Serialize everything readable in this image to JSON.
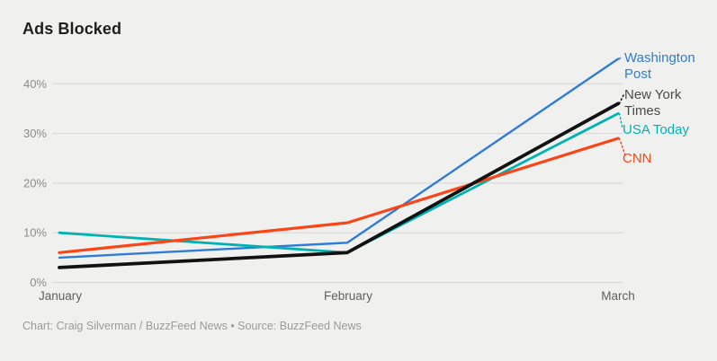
{
  "header": {
    "title": "Ads Blocked"
  },
  "chart_data": {
    "type": "line",
    "title": "Ads Blocked",
    "categories": [
      "January",
      "February",
      "March"
    ],
    "series": [
      {
        "name": "Washington Post",
        "label": "Washington\nPost",
        "color": "#2e7cd6",
        "values": [
          5,
          8,
          45
        ]
      },
      {
        "name": "New York Times",
        "label": "New York\nTimes",
        "color": "#121212",
        "label_color": "#4a4a4a",
        "values": [
          3,
          6,
          36
        ]
      },
      {
        "name": "USA Today",
        "label": "USA Today",
        "color": "#00b3b3",
        "values": [
          10,
          6,
          34
        ]
      },
      {
        "name": "CNN",
        "label": "CNN",
        "color": "#fa4516",
        "values": [
          6,
          12,
          29
        ]
      }
    ],
    "ytick_values": [
      0,
      10,
      20,
      30,
      40
    ],
    "ytick_labels": [
      "0%",
      "10%",
      "20%",
      "30%",
      "40%"
    ],
    "ylim": [
      0,
      45
    ],
    "xlabel": "",
    "ylabel": "",
    "grid": "horizontal",
    "legend_position": "right-labels",
    "colors": {
      "background": "#f0f0ee",
      "gridline": "#d5d5d4",
      "tick_label": "#8c8c8c",
      "month_label": "#5f5f5f",
      "title": "#1f1f1f",
      "credit": "#9b9b9b"
    }
  },
  "footer": {
    "credit": "Chart: Craig Silverman / BuzzFeed News • Source: BuzzFeed News"
  }
}
